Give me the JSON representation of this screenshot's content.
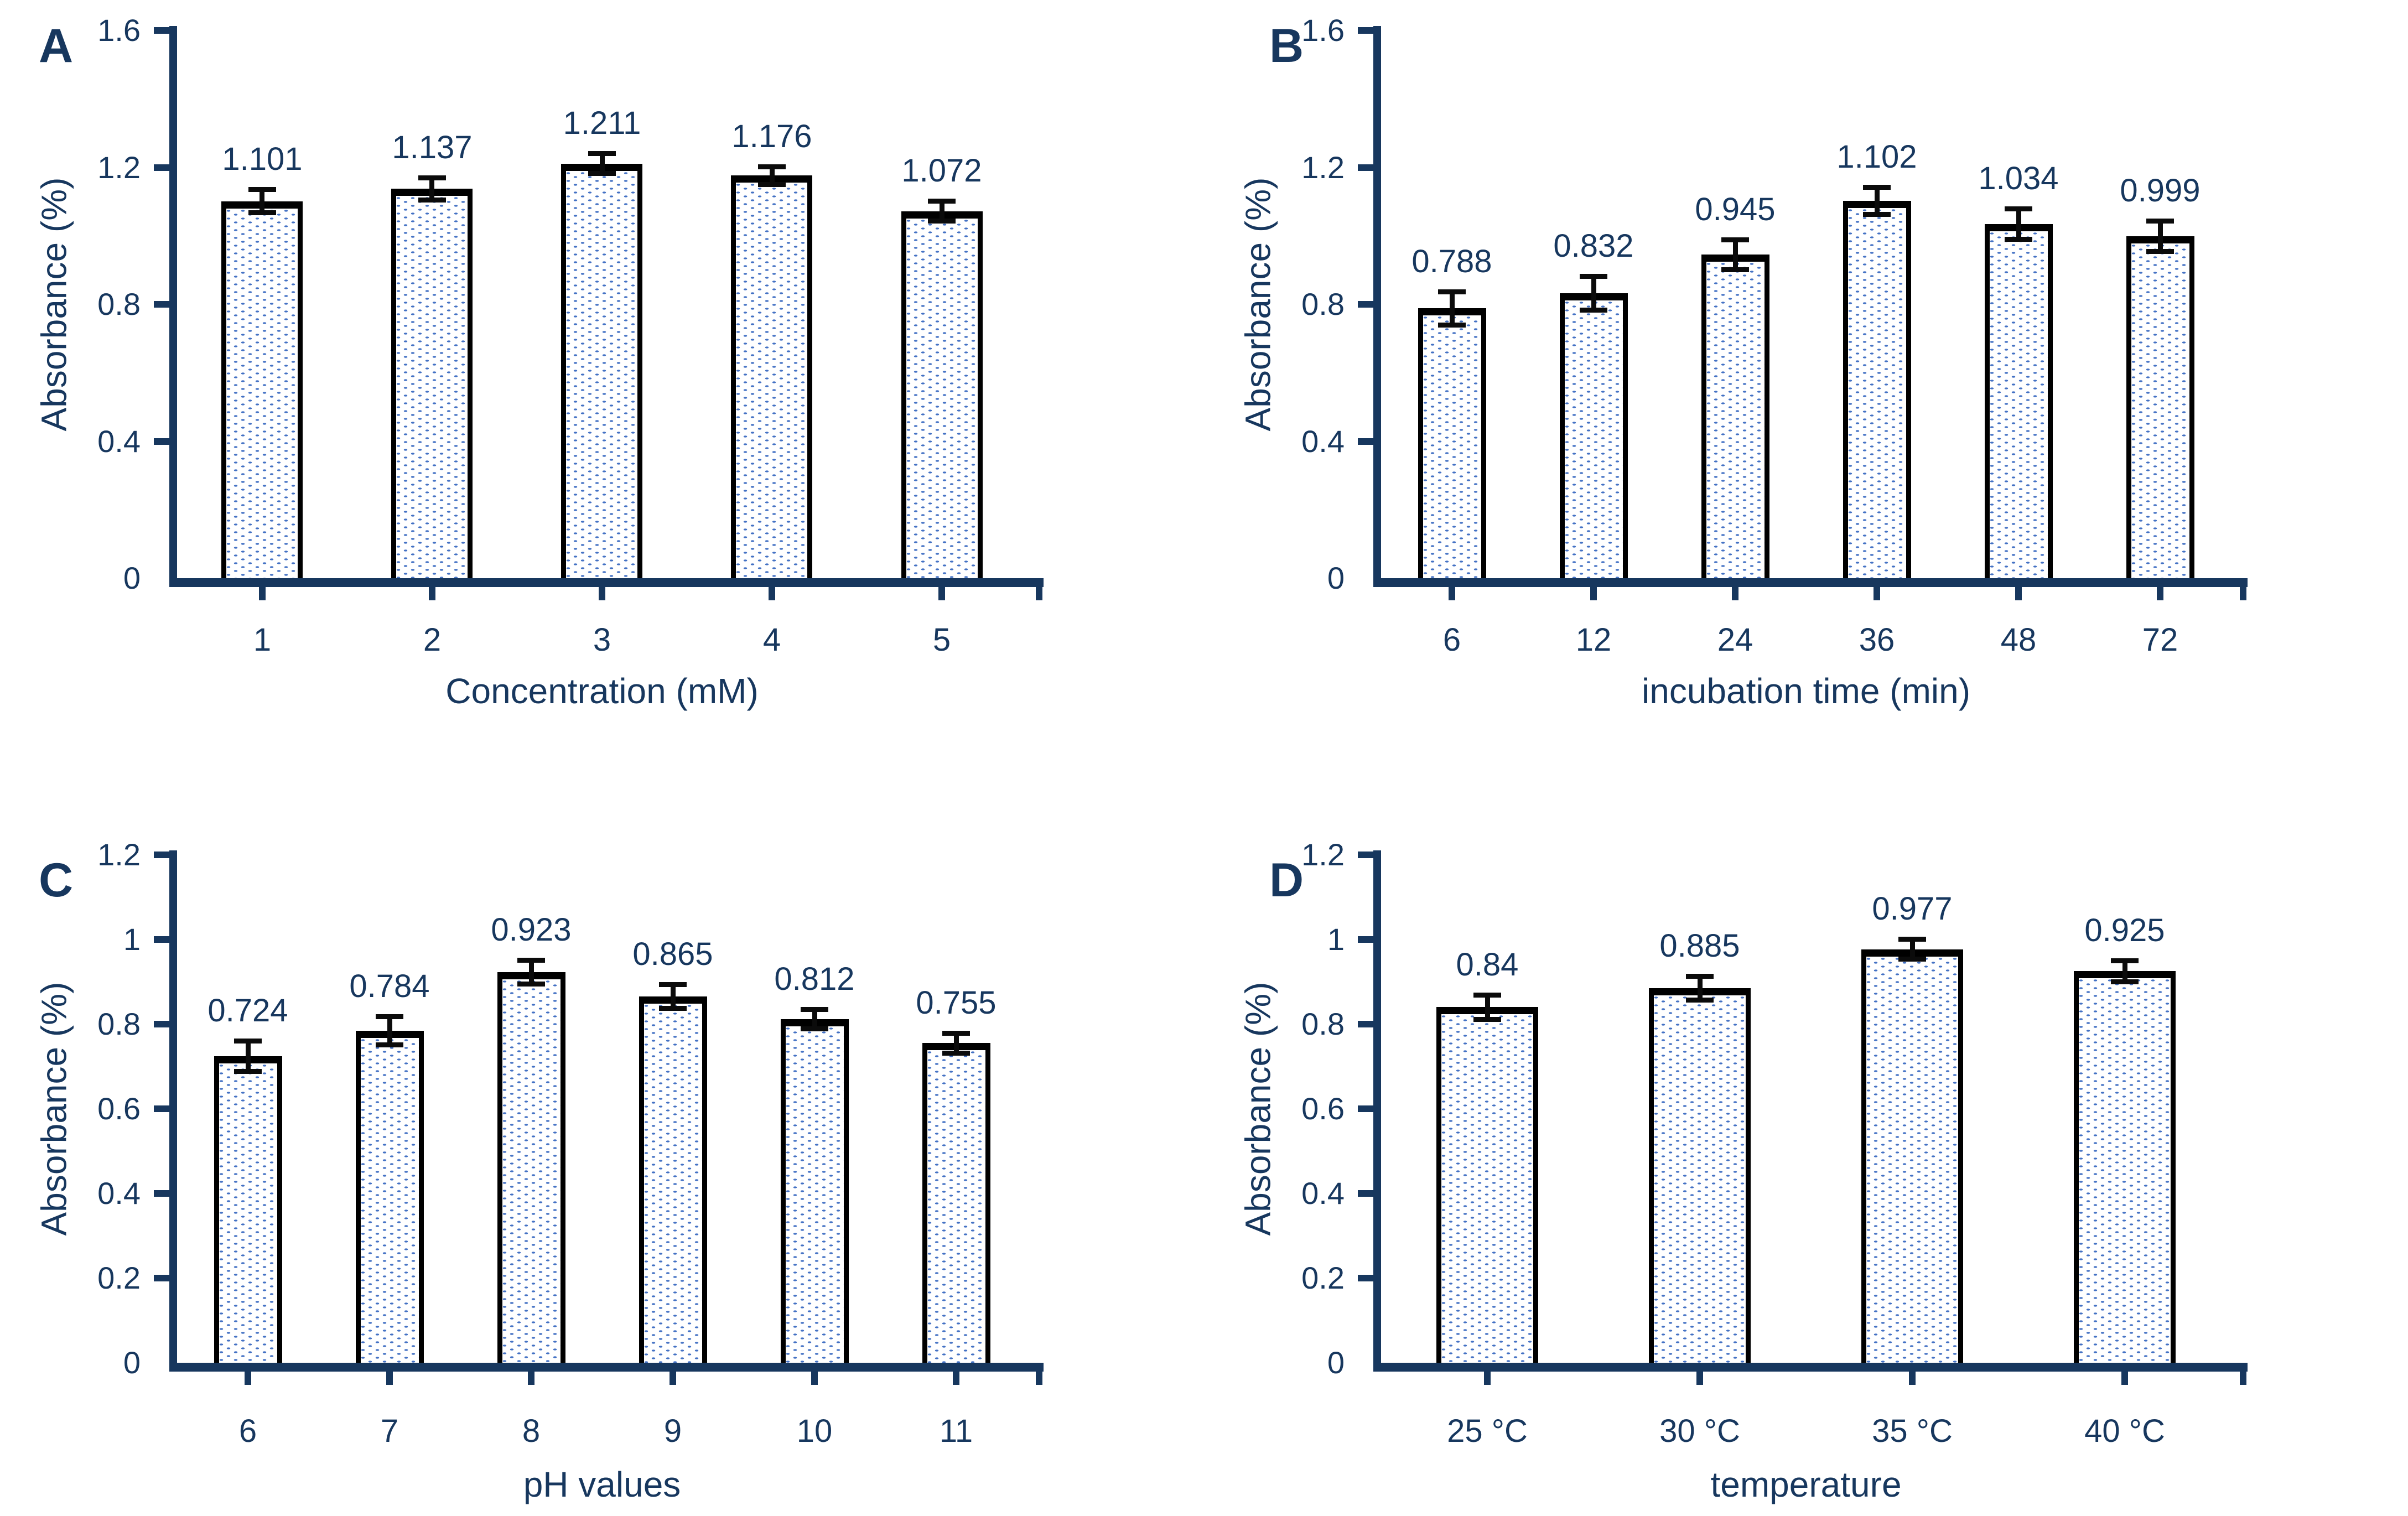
{
  "figure": {
    "background": "#ffffff",
    "text_color": "#17375E",
    "axis_color": "#17375E",
    "bar_border_color": "#000000",
    "bar_fill_color": "#ffffff",
    "bar_dot_color": "#4472c4",
    "error_bar_color": "#0b0b0b"
  },
  "chart_data": [
    {
      "panel": "A",
      "type": "bar",
      "xlabel": "Concentration (mM)",
      "ylabel": "Absorbance (%)",
      "categories": [
        "1",
        "2",
        "3",
        "4",
        "5"
      ],
      "values": [
        1.101,
        1.137,
        1.211,
        1.176,
        1.072
      ],
      "value_labels": [
        "1.101",
        "1.137",
        "1.211",
        "1.176",
        "1.072"
      ],
      "errors": [
        0.03,
        0.028,
        0.025,
        0.022,
        0.025
      ],
      "ylim": [
        0,
        1.6
      ],
      "yticks": [
        0,
        0.4,
        0.8,
        1.2,
        1.6
      ],
      "ytick_labels": [
        "0",
        "0.4",
        "0.8",
        "1.2",
        "1.6"
      ],
      "grid": false,
      "legend": null
    },
    {
      "panel": "B",
      "type": "bar",
      "xlabel": "incubation time (min)",
      "ylabel": "Absorbance (%)",
      "categories": [
        "6",
        "12",
        "24",
        "36",
        "48",
        "72"
      ],
      "values": [
        0.788,
        0.832,
        0.945,
        1.102,
        1.034,
        0.999
      ],
      "value_labels": [
        "0.788",
        "0.832",
        "0.945",
        "1.102",
        "1.034",
        "0.999"
      ],
      "errors": [
        0.045,
        0.045,
        0.04,
        0.035,
        0.04,
        0.04
      ],
      "ylim": [
        0,
        1.6
      ],
      "yticks": [
        0,
        0.4,
        0.8,
        1.2,
        1.6
      ],
      "ytick_labels": [
        "0",
        "0.4",
        "0.8",
        "1.2",
        "1.6"
      ],
      "grid": false,
      "legend": null
    },
    {
      "panel": "C",
      "type": "bar",
      "xlabel": "pH values",
      "ylabel": "Absorbance (%)",
      "categories": [
        "6",
        "7",
        "8",
        "9",
        "10",
        "11"
      ],
      "values": [
        0.724,
        0.784,
        0.923,
        0.865,
        0.812,
        0.755
      ],
      "value_labels": [
        "0.724",
        "0.784",
        "0.923",
        "0.865",
        "0.812",
        "0.755"
      ],
      "errors": [
        0.033,
        0.03,
        0.025,
        0.025,
        0.02,
        0.02
      ],
      "ylim": [
        0,
        1.2
      ],
      "yticks": [
        0,
        0.2,
        0.4,
        0.6,
        0.8,
        1,
        1.2
      ],
      "ytick_labels": [
        "0",
        "0.2",
        "0.4",
        "0.6",
        "0.8",
        "1",
        "1.2"
      ],
      "grid": false,
      "legend": null
    },
    {
      "panel": "D",
      "type": "bar",
      "xlabel": "temperature",
      "ylabel": "Absorbance (%)",
      "categories": [
        "25 °C",
        "30 °C",
        "35 °C",
        "40 °C"
      ],
      "values": [
        0.84,
        0.885,
        0.977,
        0.925
      ],
      "value_labels": [
        "0.84",
        "0.885",
        "0.977",
        "0.925"
      ],
      "errors": [
        0.025,
        0.025,
        0.02,
        0.022
      ],
      "ylim": [
        0,
        1.2
      ],
      "yticks": [
        0,
        0.2,
        0.4,
        0.6,
        0.8,
        1,
        1.2
      ],
      "ytick_labels": [
        "0",
        "0.2",
        "0.4",
        "0.6",
        "0.8",
        "1",
        "1.2"
      ],
      "grid": false,
      "legend": null
    }
  ]
}
